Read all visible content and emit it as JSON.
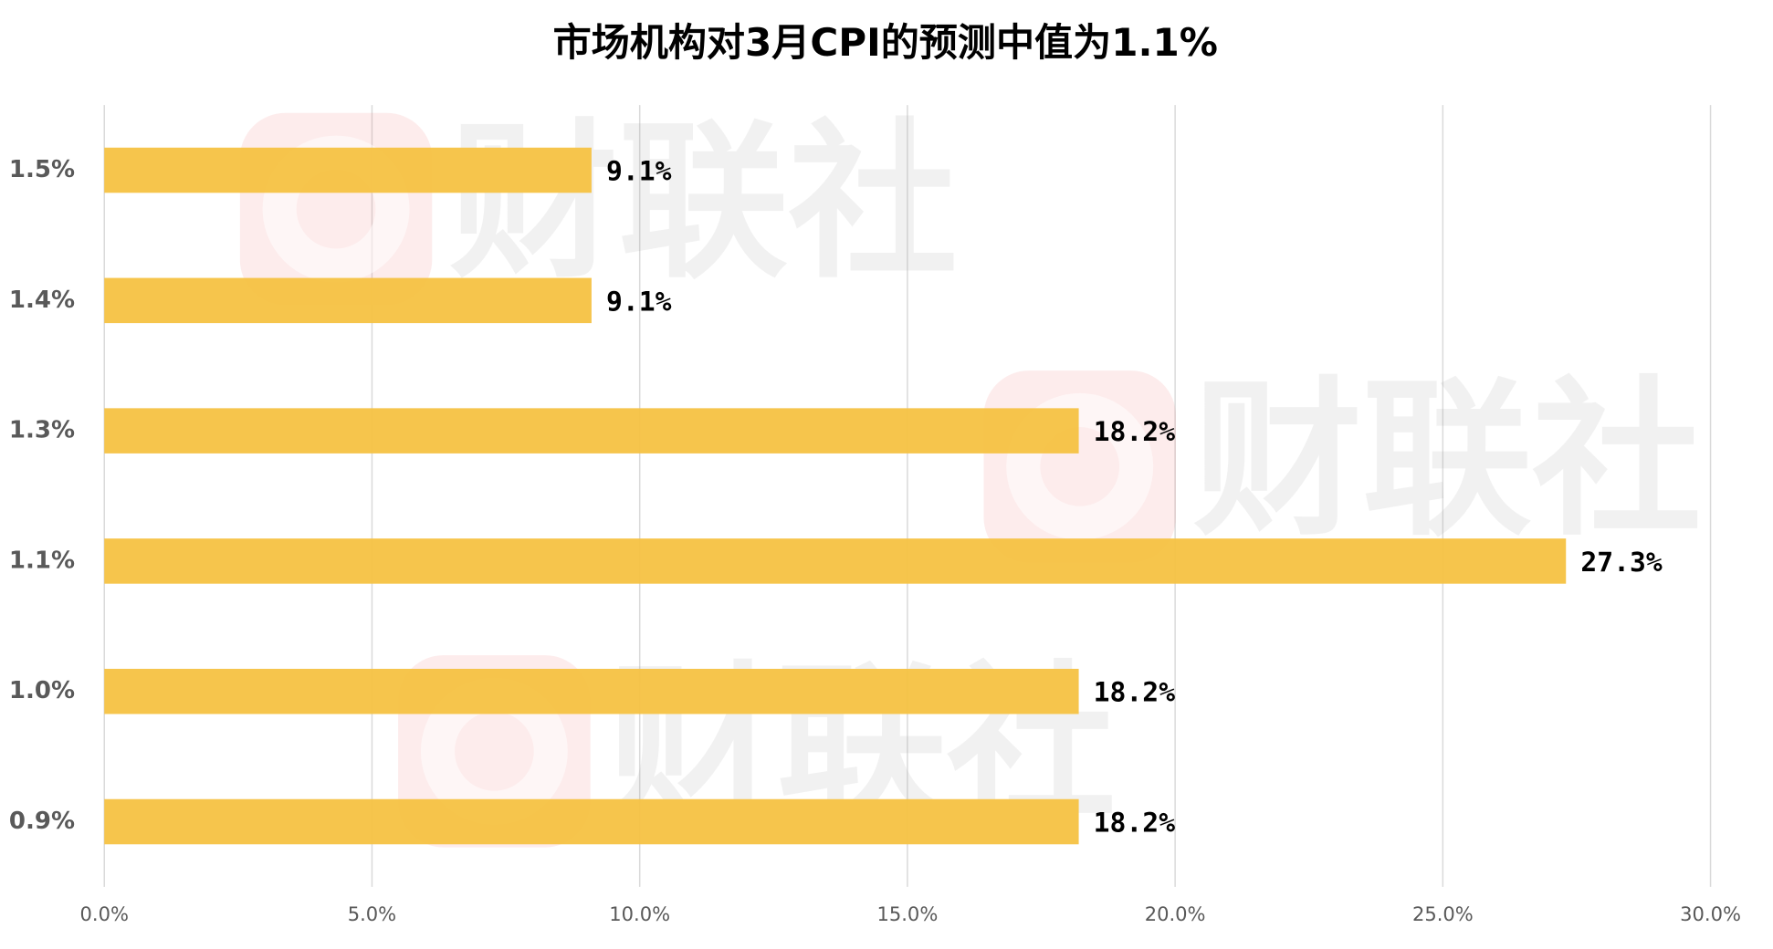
{
  "chart_data": {
    "type": "barh",
    "title": "市场机构对3月CPI的预测中值为1.1%",
    "watermark": "财联社",
    "categories": [
      "1.5%",
      "1.4%",
      "1.3%",
      "1.1%",
      "1.0%",
      "0.9%"
    ],
    "values": [
      9.1,
      9.1,
      18.2,
      27.3,
      18.2,
      18.2
    ],
    "value_labels": [
      "9.1%",
      "9.1%",
      "18.2%",
      "27.3%",
      "18.2%",
      "18.2%"
    ],
    "color": "#f5c242",
    "xlim": [
      0,
      30
    ],
    "xticks": [
      {
        "value": 0,
        "label": "0.0%"
      },
      {
        "value": 5,
        "label": "5.0%"
      },
      {
        "value": 10,
        "label": "10.0%"
      },
      {
        "value": 15,
        "label": "15.0%"
      },
      {
        "value": 20,
        "label": "20.0%"
      },
      {
        "value": 25,
        "label": "25.0%"
      },
      {
        "value": 30,
        "label": "30.0%"
      }
    ],
    "grid": true
  }
}
